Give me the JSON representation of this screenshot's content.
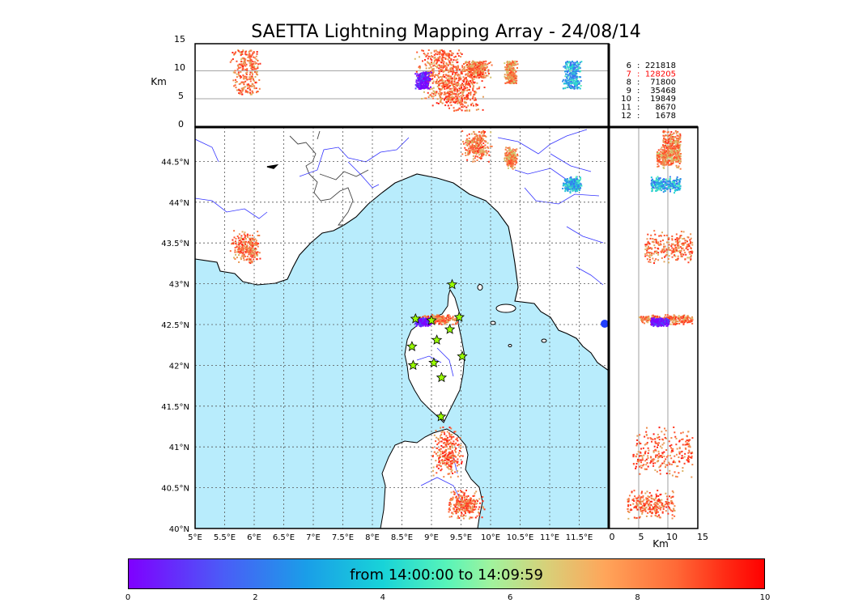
{
  "title": "SAETTA Lightning Mapping Array - 24/08/14",
  "colors": {
    "sea": "#b8ecfc",
    "land": "#ffffff",
    "coast": "#000000",
    "rivers": "#3333ff",
    "stations": "#99ff00",
    "highlight_count": "#ff0000"
  },
  "map": {
    "lon_ticks": [
      "5°E",
      "5.5°E",
      "6°E",
      "6.5°E",
      "7°E",
      "7.5°E",
      "8°E",
      "8.5°E",
      "9°E",
      "9.5°E",
      "10°E",
      "10.5°E",
      "11°E",
      "11.5°E"
    ],
    "lat_ticks": [
      "40°N",
      "40.5°N",
      "41°N",
      "41.5°N",
      "42°N",
      "42.5°N",
      "43°N",
      "43.5°N",
      "44°N",
      "44.5°N"
    ],
    "lon_range": [
      5,
      12
    ],
    "lat_range": [
      40,
      45
    ]
  },
  "altitude_panel": {
    "ylabel": "Km",
    "yticks": [
      "0",
      "5",
      "10",
      "15"
    ],
    "range": [
      0,
      15
    ]
  },
  "side_panel": {
    "xlabel": "Km",
    "xticks": [
      "0",
      "5",
      "10",
      "15"
    ],
    "range": [
      0,
      15
    ]
  },
  "station_counts": [
    {
      "stations": "6",
      "count": "221818",
      "highlight": false
    },
    {
      "stations": "7",
      "count": "128205",
      "highlight": true
    },
    {
      "stations": "8",
      "count": "71800",
      "highlight": false
    },
    {
      "stations": "9",
      "count": "35468",
      "highlight": false
    },
    {
      "stations": "10",
      "count": "19849",
      "highlight": false
    },
    {
      "stations": "11",
      "count": "8670",
      "highlight": false
    },
    {
      "stations": "12",
      "count": "1678",
      "highlight": false
    }
  ],
  "colorbar": {
    "label": "from 14:00:00 to 14:09:59",
    "ticks": [
      "0",
      "2",
      "4",
      "6",
      "8",
      "10"
    ],
    "range": [
      0,
      10
    ]
  },
  "stations": [
    {
      "lon": 8.73,
      "lat": 42.57
    },
    {
      "lon": 9.0,
      "lat": 42.55
    },
    {
      "lon": 9.35,
      "lat": 42.99
    },
    {
      "lon": 9.47,
      "lat": 42.59
    },
    {
      "lon": 9.31,
      "lat": 42.44
    },
    {
      "lon": 9.09,
      "lat": 42.31
    },
    {
      "lon": 8.67,
      "lat": 42.23
    },
    {
      "lon": 8.69,
      "lat": 42.0
    },
    {
      "lon": 9.04,
      "lat": 42.03
    },
    {
      "lon": 9.52,
      "lat": 42.11
    },
    {
      "lon": 9.17,
      "lat": 41.85
    },
    {
      "lon": 9.16,
      "lat": 41.37
    }
  ],
  "lightning_clusters": [
    {
      "name": "provence",
      "lon": [
        5.65,
        6.05
      ],
      "lat": [
        43.3,
        43.6
      ],
      "alt": [
        6,
        14
      ],
      "time": 8.6
    },
    {
      "name": "alps-north-1",
      "lon": [
        9.55,
        9.95
      ],
      "lat": [
        44.55,
        44.85
      ],
      "alt": [
        9,
        12
      ],
      "time": 8.4
    },
    {
      "name": "alps-north-2",
      "lon": [
        10.25,
        10.42
      ],
      "lat": [
        44.45,
        44.65
      ],
      "alt": [
        8,
        12
      ],
      "time": 8.0
    },
    {
      "name": "corsica-cape",
      "lon": [
        8.8,
        9.4
      ],
      "lat": [
        42.52,
        42.62
      ],
      "alt": [
        5,
        14
      ],
      "time": 8.5
    },
    {
      "name": "corsica-cape-early",
      "lon": [
        8.75,
        8.95
      ],
      "lat": [
        42.5,
        42.58
      ],
      "alt": [
        7,
        10
      ],
      "time": 0.8
    },
    {
      "name": "sardinia-north",
      "lon": [
        9.05,
        9.45
      ],
      "lat": [
        40.7,
        41.2
      ],
      "alt": [
        4,
        14
      ],
      "time": 8.8
    },
    {
      "name": "sardinia-east",
      "lon": [
        9.3,
        9.8
      ],
      "lat": [
        40.15,
        40.45
      ],
      "alt": [
        3,
        11
      ],
      "time": 8.7
    },
    {
      "name": "tuscany-coast",
      "lon": [
        11.25,
        11.5
      ],
      "lat": [
        44.15,
        44.3
      ],
      "alt": [
        7,
        12
      ],
      "time": 4.0
    }
  ]
}
